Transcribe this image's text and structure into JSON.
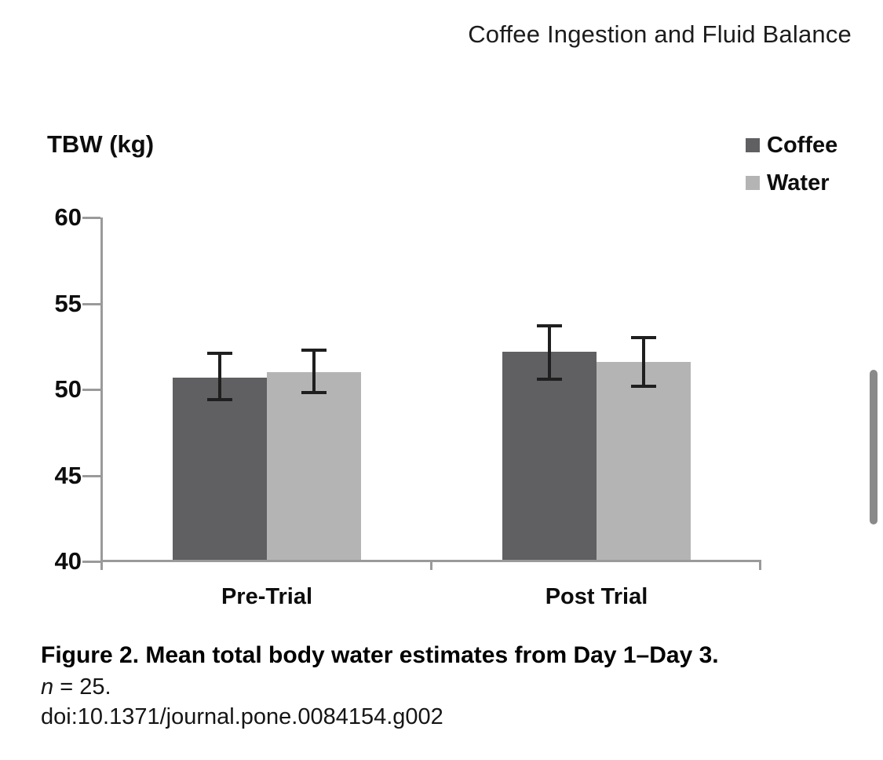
{
  "page": {
    "running_header": "Coffee Ingestion and Fluid Balance"
  },
  "chart_data": {
    "type": "bar",
    "title": "",
    "xlabel": "",
    "ylabel": "TBW (kg)",
    "ylim": [
      40,
      60
    ],
    "yticks": [
      60,
      55,
      50,
      45,
      40
    ],
    "categories": [
      "Pre-Trial",
      "Post Trial"
    ],
    "series": [
      {
        "name": "Coffee",
        "color": "#606062",
        "values": [
          50.7,
          52.2
        ],
        "error_upper": [
          52.1,
          53.7
        ],
        "error_lower": [
          49.4,
          50.6
        ]
      },
      {
        "name": "Water",
        "color": "#b4b4b4",
        "values": [
          51.0,
          51.6
        ],
        "error_upper": [
          52.3,
          53.0
        ],
        "error_lower": [
          49.8,
          50.2
        ]
      }
    ],
    "legend_position": "top-right",
    "grid": false
  },
  "caption": {
    "title": "Figure 2. Mean total body water estimates from Day 1–Day 3.",
    "n_label": "n",
    "n_value": " = 25.",
    "doi": "doi:10.1371/journal.pone.0084154.g002"
  },
  "colors": {
    "coffee_bar": "#606062",
    "water_bar": "#b4b4b4",
    "axis": "#9a9a9a",
    "error_bar": "#1f1f1f",
    "text": "#0d0d0d",
    "scrollbar": "#8a8a8a"
  }
}
